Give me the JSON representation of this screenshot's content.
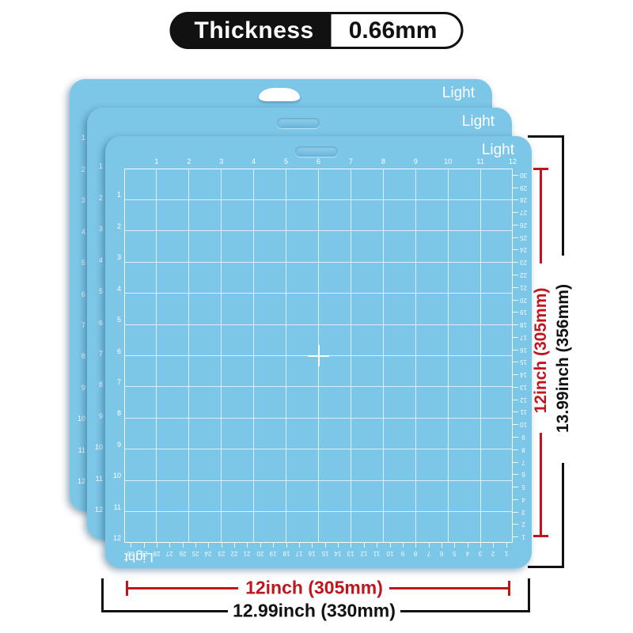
{
  "header": {
    "thickness_label": "Thickness",
    "thickness_value": "0.66mm"
  },
  "mat": {
    "brand_label": "Light"
  },
  "ruler": {
    "top_inch": [
      "1",
      "2",
      "3",
      "4",
      "5",
      "6",
      "7",
      "8",
      "9",
      "10",
      "11",
      "12"
    ],
    "left_inch": [
      "1",
      "2",
      "3",
      "4",
      "5",
      "6",
      "7",
      "8",
      "9",
      "10",
      "11",
      "12"
    ],
    "right_cm": [
      "30",
      "29",
      "28",
      "27",
      "26",
      "25",
      "24",
      "23",
      "22",
      "21",
      "20",
      "19",
      "18",
      "17",
      "16",
      "15",
      "14",
      "13",
      "12",
      "11",
      "10",
      "9",
      "8",
      "7",
      "6",
      "5",
      "4",
      "3",
      "2",
      "1"
    ],
    "bottom_cm": [
      "30",
      "29",
      "28",
      "27",
      "26",
      "25",
      "24",
      "23",
      "22",
      "21",
      "20",
      "19",
      "18",
      "17",
      "16",
      "15",
      "14",
      "13",
      "12",
      "11",
      "10",
      "9",
      "8",
      "7",
      "6",
      "5",
      "4",
      "3",
      "2",
      "1"
    ]
  },
  "dimensions": {
    "grid_height_label": "12inch (305mm)",
    "mat_height_label": "13.99inch (356mm)",
    "grid_width_label": "12inch (305mm)",
    "mat_width_label": "12.99inch (330mm)"
  },
  "colors": {
    "mat_blue": "#7cc6e8",
    "accent_red": "#c0151c",
    "ink": "#111111"
  }
}
